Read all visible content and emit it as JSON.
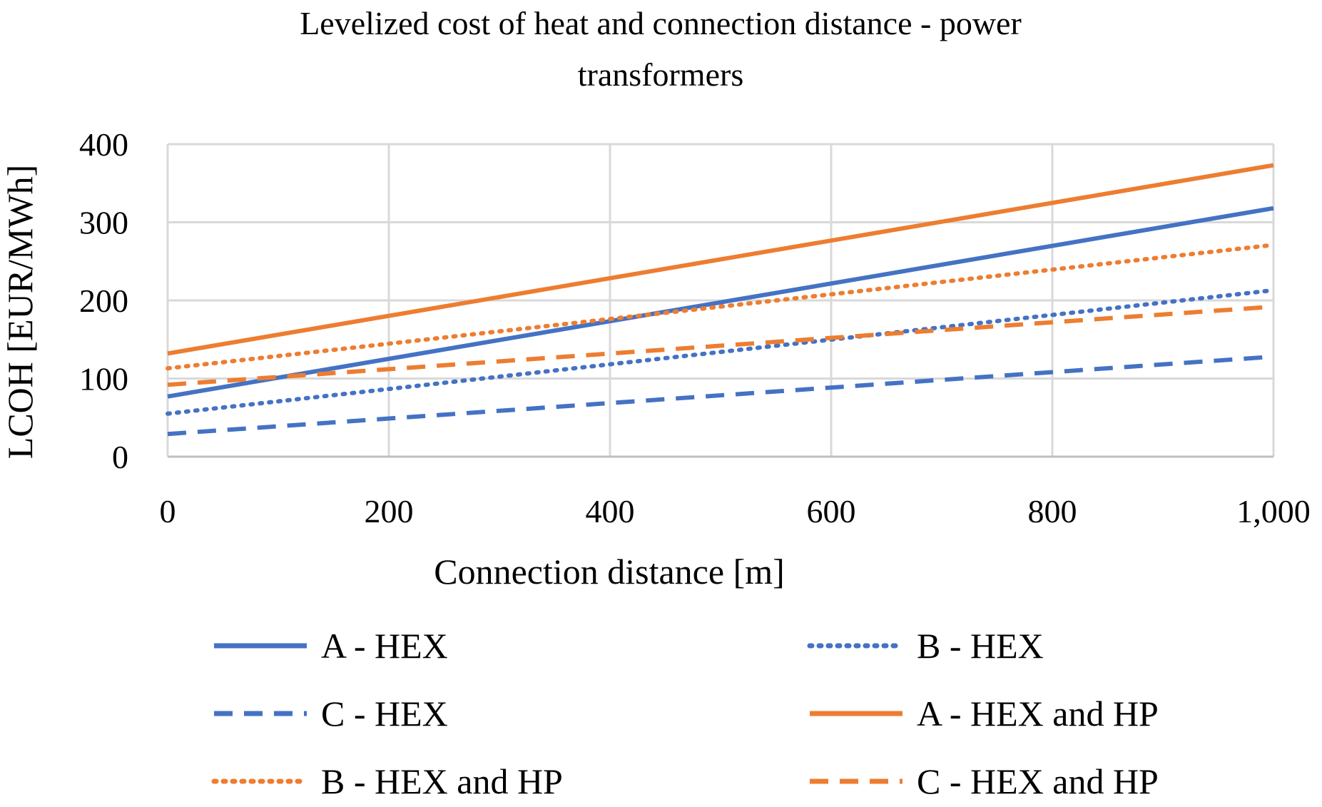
{
  "chart_data": {
    "type": "line",
    "title_lines": [
      "Levelized cost of heat and connection distance - power",
      "transformers"
    ],
    "xlabel": "Connection distance [m]",
    "ylabel": "LCOH [EUR/MWh]",
    "x": [
      0,
      1000
    ],
    "xlim": [
      0,
      1000
    ],
    "ylim": [
      0,
      400
    ],
    "x_ticks": [
      0,
      200,
      400,
      600,
      800,
      1000
    ],
    "x_tick_labels": [
      "0",
      "200",
      "400",
      "600",
      "800",
      "1,000"
    ],
    "y_ticks": [
      0,
      100,
      200,
      300,
      400
    ],
    "y_tick_labels": [
      "0",
      "100",
      "200",
      "300",
      "400"
    ],
    "grid": true,
    "legend_position": "bottom",
    "series": [
      {
        "name": "A - HEX",
        "values": [
          77,
          318
        ],
        "color": "#4472C4",
        "style": "solid"
      },
      {
        "name": "B - HEX",
        "values": [
          55,
          213
        ],
        "color": "#4472C4",
        "style": "dotted"
      },
      {
        "name": "C - HEX",
        "values": [
          29,
          128
        ],
        "color": "#4472C4",
        "style": "dashed"
      },
      {
        "name": "A - HEX and HP",
        "values": [
          132,
          373
        ],
        "color": "#ED7D31",
        "style": "solid"
      },
      {
        "name": "B - HEX and HP",
        "values": [
          113,
          271
        ],
        "color": "#ED7D31",
        "style": "dotted"
      },
      {
        "name": "C - HEX and HP",
        "values": [
          92,
          192
        ],
        "color": "#ED7D31",
        "style": "dashed"
      }
    ]
  }
}
